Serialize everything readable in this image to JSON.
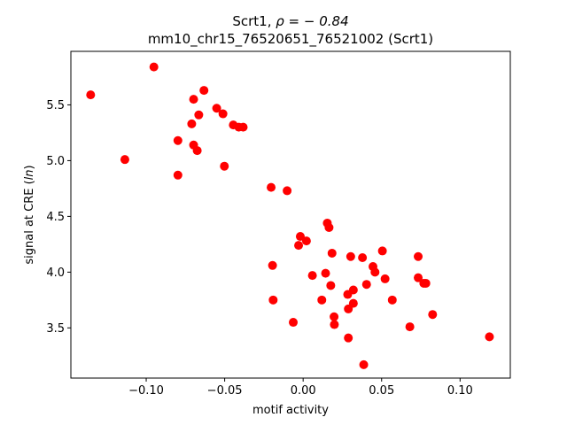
{
  "chart_data": {
    "type": "scatter",
    "title_line1": "Scrt1, ",
    "title_rho": "ρ = − 0.84",
    "title_line2": "mm10_chr15_76520651_76521002 (Scrt1)",
    "xlabel": "motif activity",
    "ylabel_main": "signal at CRE (",
    "ylabel_ln": "ln",
    "ylabel_close": ")",
    "xlim": [
      -0.148,
      0.132
    ],
    "ylim": [
      3.05,
      5.98
    ],
    "xticks": [
      {
        "value": -0.1,
        "label": "−0.10"
      },
      {
        "value": -0.05,
        "label": "−0.05"
      },
      {
        "value": 0.0,
        "label": "0.00"
      },
      {
        "value": 0.05,
        "label": "0.05"
      },
      {
        "value": 0.1,
        "label": "0.10"
      }
    ],
    "yticks": [
      {
        "value": 3.5,
        "label": "3.5"
      },
      {
        "value": 4.0,
        "label": "4.0"
      },
      {
        "value": 4.5,
        "label": "4.5"
      },
      {
        "value": 5.0,
        "label": "5.0"
      },
      {
        "value": 5.5,
        "label": "5.5"
      }
    ],
    "marker_color": "#ff0000",
    "grid": false,
    "points": [
      {
        "x": -0.1354,
        "y": 5.59
      },
      {
        "x": -0.0951,
        "y": 5.84
      },
      {
        "x": -0.1136,
        "y": 5.01
      },
      {
        "x": -0.0798,
        "y": 4.87
      },
      {
        "x": -0.0798,
        "y": 5.18
      },
      {
        "x": -0.071,
        "y": 5.33
      },
      {
        "x": -0.0698,
        "y": 5.55
      },
      {
        "x": -0.0698,
        "y": 5.14
      },
      {
        "x": -0.0675,
        "y": 5.09
      },
      {
        "x": -0.0665,
        "y": 5.41
      },
      {
        "x": -0.0632,
        "y": 5.63
      },
      {
        "x": -0.0551,
        "y": 5.47
      },
      {
        "x": -0.0511,
        "y": 5.42
      },
      {
        "x": -0.0502,
        "y": 4.95
      },
      {
        "x": -0.0445,
        "y": 5.32
      },
      {
        "x": -0.041,
        "y": 5.3
      },
      {
        "x": -0.0382,
        "y": 5.3
      },
      {
        "x": -0.0204,
        "y": 4.76
      },
      {
        "x": -0.0102,
        "y": 4.73
      },
      {
        "x": -0.0195,
        "y": 4.06
      },
      {
        "x": -0.0191,
        "y": 3.75
      },
      {
        "x": -0.0063,
        "y": 3.55
      },
      {
        "x": -0.0029,
        "y": 4.24
      },
      {
        "x": -0.0018,
        "y": 4.32
      },
      {
        "x": 0.0021,
        "y": 4.28
      },
      {
        "x": 0.0059,
        "y": 3.97
      },
      {
        "x": 0.0119,
        "y": 3.75
      },
      {
        "x": 0.0143,
        "y": 3.99
      },
      {
        "x": 0.0154,
        "y": 4.44
      },
      {
        "x": 0.0165,
        "y": 4.4
      },
      {
        "x": 0.0176,
        "y": 3.88
      },
      {
        "x": 0.0184,
        "y": 4.17
      },
      {
        "x": 0.0197,
        "y": 3.6
      },
      {
        "x": 0.0199,
        "y": 3.53
      },
      {
        "x": 0.0284,
        "y": 3.8
      },
      {
        "x": 0.0288,
        "y": 3.67
      },
      {
        "x": 0.0288,
        "y": 3.41
      },
      {
        "x": 0.0303,
        "y": 4.14
      },
      {
        "x": 0.032,
        "y": 3.84
      },
      {
        "x": 0.032,
        "y": 3.72
      },
      {
        "x": 0.0378,
        "y": 4.13
      },
      {
        "x": 0.0386,
        "y": 3.17
      },
      {
        "x": 0.0404,
        "y": 3.89
      },
      {
        "x": 0.0445,
        "y": 4.05
      },
      {
        "x": 0.0458,
        "y": 4.0
      },
      {
        "x": 0.0505,
        "y": 4.19
      },
      {
        "x": 0.0522,
        "y": 3.94
      },
      {
        "x": 0.0568,
        "y": 3.75
      },
      {
        "x": 0.068,
        "y": 3.51
      },
      {
        "x": 0.0733,
        "y": 4.14
      },
      {
        "x": 0.0733,
        "y": 3.95
      },
      {
        "x": 0.0769,
        "y": 3.9
      },
      {
        "x": 0.0782,
        "y": 3.9
      },
      {
        "x": 0.0825,
        "y": 3.62
      },
      {
        "x": 0.1187,
        "y": 3.42
      }
    ]
  }
}
